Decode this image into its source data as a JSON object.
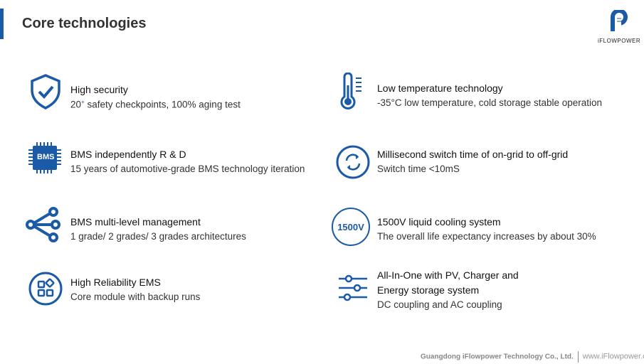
{
  "header": {
    "title": "Core technologies",
    "logo_text": "iFLOWPOWER"
  },
  "colors": {
    "accent": "#1a5aa6"
  },
  "left": [
    {
      "icon": "shield-check-icon",
      "title": "High security",
      "desc_num": "20",
      "desc_sup": "+",
      "desc": " safety checkpoints, 100% aging test"
    },
    {
      "icon": "bms-chip-icon",
      "icon_label": "BMS",
      "title": "BMS independently R & D",
      "desc": "15 years of automotive-grade BMS technology iteration"
    },
    {
      "icon": "share-network-icon",
      "title": "BMS multi-level management",
      "desc": "1 grade/ 2 grades/ 3 grades architectures"
    },
    {
      "icon": "module-grid-icon",
      "title": "High Reliability EMS",
      "desc": "Core module with backup runs"
    }
  ],
  "right": [
    {
      "icon": "thermometer-icon",
      "title": "Low temperature technology",
      "desc": "-35°C low temperature, cold storage stable operation"
    },
    {
      "icon": "switch-cycle-icon",
      "title": "Millisecond switch time of on-grid to off-grid",
      "desc": "Switch time <10mS"
    },
    {
      "icon": "1500v-badge-icon",
      "icon_label": "1500V",
      "title": "1500V liquid cooling system",
      "desc": "The overall life expectancy increases by about 30%"
    },
    {
      "icon": "sliders-icon",
      "title_line1": "All-In-One with PV, Charger and",
      "title_line2": "Energy storage system",
      "desc": "DC coupling and AC coupling"
    }
  ],
  "footer": {
    "company": "Guangdong iFlowpower Technology Co., Ltd.",
    "website": "www.iFlowpower.com"
  }
}
